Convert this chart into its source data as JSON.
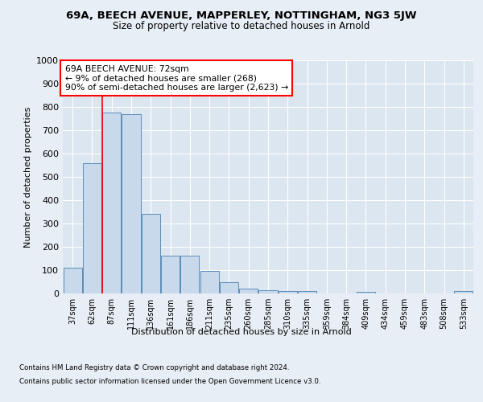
{
  "title": "69A, BEECH AVENUE, MAPPERLEY, NOTTINGHAM, NG3 5JW",
  "subtitle": "Size of property relative to detached houses in Arnold",
  "xlabel": "Distribution of detached houses by size in Arnold",
  "ylabel": "Number of detached properties",
  "categories": [
    "37sqm",
    "62sqm",
    "87sqm",
    "111sqm",
    "136sqm",
    "161sqm",
    "186sqm",
    "211sqm",
    "235sqm",
    "260sqm",
    "285sqm",
    "310sqm",
    "335sqm",
    "359sqm",
    "384sqm",
    "409sqm",
    "434sqm",
    "459sqm",
    "483sqm",
    "508sqm",
    "533sqm"
  ],
  "values": [
    110,
    560,
    775,
    770,
    340,
    163,
    162,
    95,
    50,
    20,
    13,
    10,
    9,
    0,
    0,
    7,
    0,
    0,
    0,
    0,
    9
  ],
  "bar_color": "#c9d9ec",
  "bar_edge_color": "#5b8db8",
  "annotation_text_line1": "69A BEECH AVENUE: 72sqm",
  "annotation_text_line2": "← 9% of detached houses are smaller (268)",
  "annotation_text_line3": "90% of semi-detached houses are larger (2,623) →",
  "annotation_box_color": "white",
  "annotation_box_edge_color": "red",
  "vline_color": "red",
  "vline_x": 1.5,
  "ylim": [
    0,
    1000
  ],
  "yticks": [
    0,
    100,
    200,
    300,
    400,
    500,
    600,
    700,
    800,
    900,
    1000
  ],
  "footer_line1": "Contains HM Land Registry data © Crown copyright and database right 2024.",
  "footer_line2": "Contains public sector information licensed under the Open Government Licence v3.0.",
  "bg_color": "#e8eef5",
  "plot_bg_color": "#dce6f0"
}
